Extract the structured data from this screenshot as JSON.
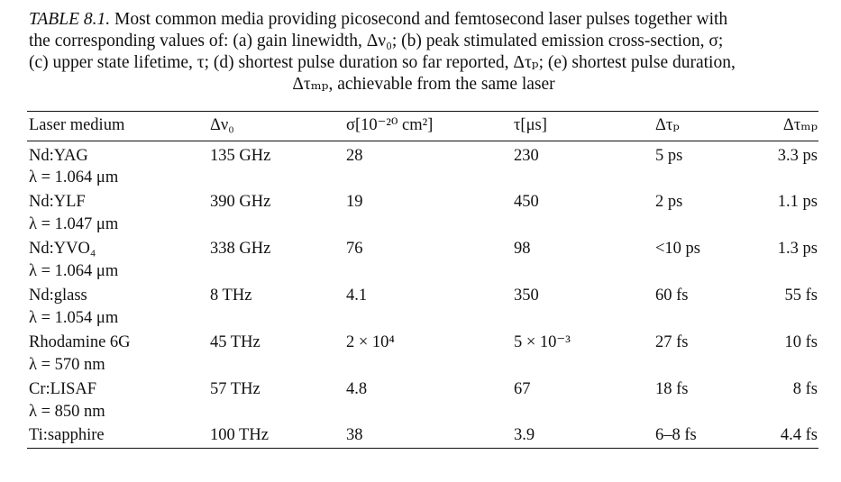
{
  "caption": {
    "label": "TABLE 8.1.",
    "lines": [
      "Most common media providing picosecond and femtosecond laser pulses together with",
      "the corresponding values of: (a) gain linewidth, Δν₀; (b) peak stimulated emission cross-section, σ;",
      "(c) upper state lifetime, τ; (d) shortest pulse duration so far reported, Δτₚ; (e) shortest pulse duration,",
      "Δτₘₚ, achievable from the same laser"
    ]
  },
  "table": {
    "headers": {
      "medium": "Laser medium",
      "gain_linewidth": "Δν₀",
      "cross_section": "σ[10⁻²⁰ cm²]",
      "lifetime": "τ[μs]",
      "pulse_reported": "Δτₚ",
      "pulse_achievable": "Δτₘₚ"
    },
    "rows": [
      {
        "medium": "Nd:YAG",
        "wavelength": "λ = 1.064 μm",
        "gain_linewidth": "135 GHz",
        "cross_section": "28",
        "lifetime": "230",
        "pulse_reported": "5 ps",
        "pulse_achievable": "3.3 ps"
      },
      {
        "medium": "Nd:YLF",
        "wavelength": "λ = 1.047 μm",
        "gain_linewidth": "390 GHz",
        "cross_section": "19",
        "lifetime": "450",
        "pulse_reported": "2 ps",
        "pulse_achievable": "1.1 ps"
      },
      {
        "medium": "Nd:YVO₄",
        "wavelength": "λ = 1.064 μm",
        "gain_linewidth": "338 GHz",
        "cross_section": "76",
        "lifetime": "98",
        "pulse_reported": "<10 ps",
        "pulse_achievable": "1.3 ps"
      },
      {
        "medium": "Nd:glass",
        "wavelength": "λ = 1.054 μm",
        "gain_linewidth": "8 THz",
        "cross_section": "4.1",
        "lifetime": "350",
        "pulse_reported": "60 fs",
        "pulse_achievable": "55 fs"
      },
      {
        "medium": "Rhodamine 6G",
        "wavelength": "λ = 570 nm",
        "gain_linewidth": "45 THz",
        "cross_section": "2 × 10⁴",
        "lifetime": "5 × 10⁻³",
        "pulse_reported": "27 fs",
        "pulse_achievable": "10 fs"
      },
      {
        "medium": "Cr:LISAF",
        "wavelength": "λ = 850 nm",
        "gain_linewidth": "57 THz",
        "cross_section": "4.8",
        "lifetime": "67",
        "pulse_reported": "18 fs",
        "pulse_achievable": "8 fs"
      },
      {
        "medium": "Ti:sapphire",
        "wavelength": "",
        "gain_linewidth": "100 THz",
        "cross_section": "38",
        "lifetime": "3.9",
        "pulse_reported": "6–8 fs",
        "pulse_achievable": "4.4 fs"
      }
    ]
  }
}
